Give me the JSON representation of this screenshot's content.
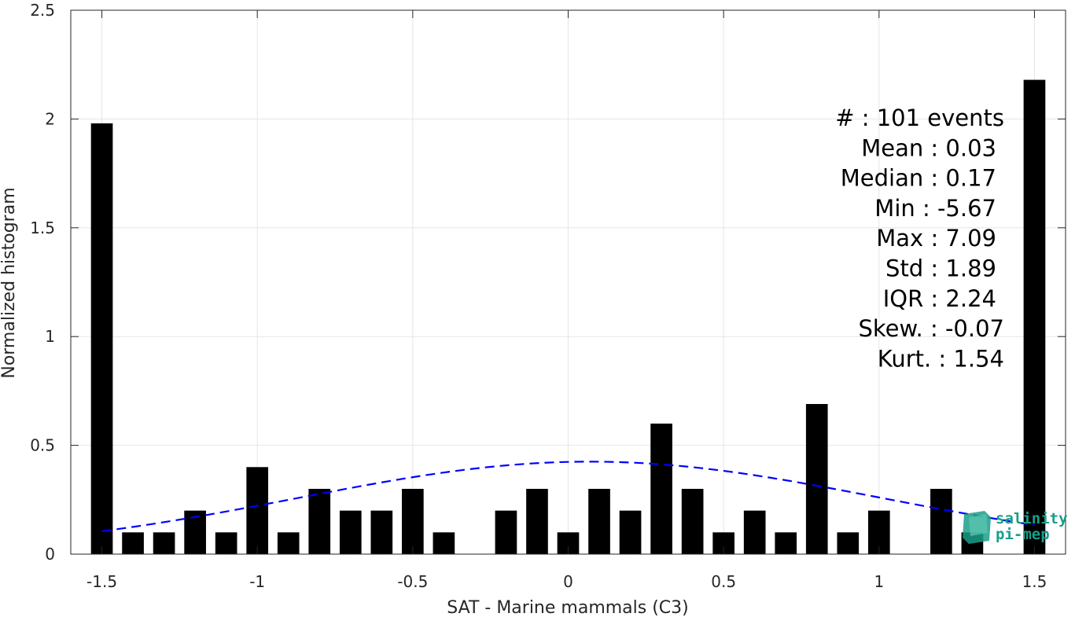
{
  "chart_data": {
    "type": "bar",
    "title": "",
    "xlabel": "SAT - Marine mammals (C3)",
    "ylabel": "Normalized histogram",
    "xlim": [
      -1.6,
      1.6
    ],
    "ylim": [
      0,
      2.5
    ],
    "xticks": [
      -1.5,
      -1,
      -0.5,
      0,
      0.5,
      1,
      1.5
    ],
    "xtick_labels": [
      "-1.5",
      "-1",
      "-0.5",
      "0",
      "0.5",
      "1",
      "1.5"
    ],
    "yticks": [
      0,
      0.5,
      1,
      1.5,
      2,
      2.5
    ],
    "ytick_labels": [
      "0",
      "0.5",
      "1",
      "1.5",
      "2",
      "2.5"
    ],
    "grid": true,
    "bar_width": 0.07,
    "bar_color": "#000000",
    "bins": [
      {
        "x": -1.5,
        "value": 1.98
      },
      {
        "x": -1.4,
        "value": 0.1
      },
      {
        "x": -1.3,
        "value": 0.1
      },
      {
        "x": -1.2,
        "value": 0.2
      },
      {
        "x": -1.1,
        "value": 0.1
      },
      {
        "x": -1.0,
        "value": 0.4
      },
      {
        "x": -0.9,
        "value": 0.1
      },
      {
        "x": -0.8,
        "value": 0.3
      },
      {
        "x": -0.7,
        "value": 0.2
      },
      {
        "x": -0.6,
        "value": 0.2
      },
      {
        "x": -0.5,
        "value": 0.3
      },
      {
        "x": -0.4,
        "value": 0.1
      },
      {
        "x": -0.2,
        "value": 0.2
      },
      {
        "x": -0.1,
        "value": 0.3
      },
      {
        "x": 0.0,
        "value": 0.1
      },
      {
        "x": 0.1,
        "value": 0.3
      },
      {
        "x": 0.2,
        "value": 0.2
      },
      {
        "x": 0.3,
        "value": 0.6
      },
      {
        "x": 0.4,
        "value": 0.3
      },
      {
        "x": 0.5,
        "value": 0.1
      },
      {
        "x": 0.6,
        "value": 0.2
      },
      {
        "x": 0.7,
        "value": 0.1
      },
      {
        "x": 0.8,
        "value": 0.69
      },
      {
        "x": 0.9,
        "value": 0.1
      },
      {
        "x": 1.0,
        "value": 0.2
      },
      {
        "x": 1.2,
        "value": 0.3
      },
      {
        "x": 1.3,
        "value": 0.1
      },
      {
        "x": 1.5,
        "value": 2.18
      }
    ],
    "fit_curve": {
      "type": "normal",
      "mean": 0.07,
      "std": 0.94,
      "peak": 0.425,
      "x_range": [
        -1.5,
        1.5
      ],
      "color": "#0000ff",
      "style": "dashed"
    },
    "stats": [
      "#  : 101 events",
      "Mean : 0.03",
      "Median : 0.17",
      "Min : -5.67",
      "Max : 7.09",
      "Std : 1.89",
      "IQR : 2.24",
      "Skew. : -0.07",
      "Kurt. : 1.54"
    ]
  },
  "logo": {
    "line1": "salinity",
    "line2": "pi-mep",
    "color": "#1a9e8a"
  }
}
